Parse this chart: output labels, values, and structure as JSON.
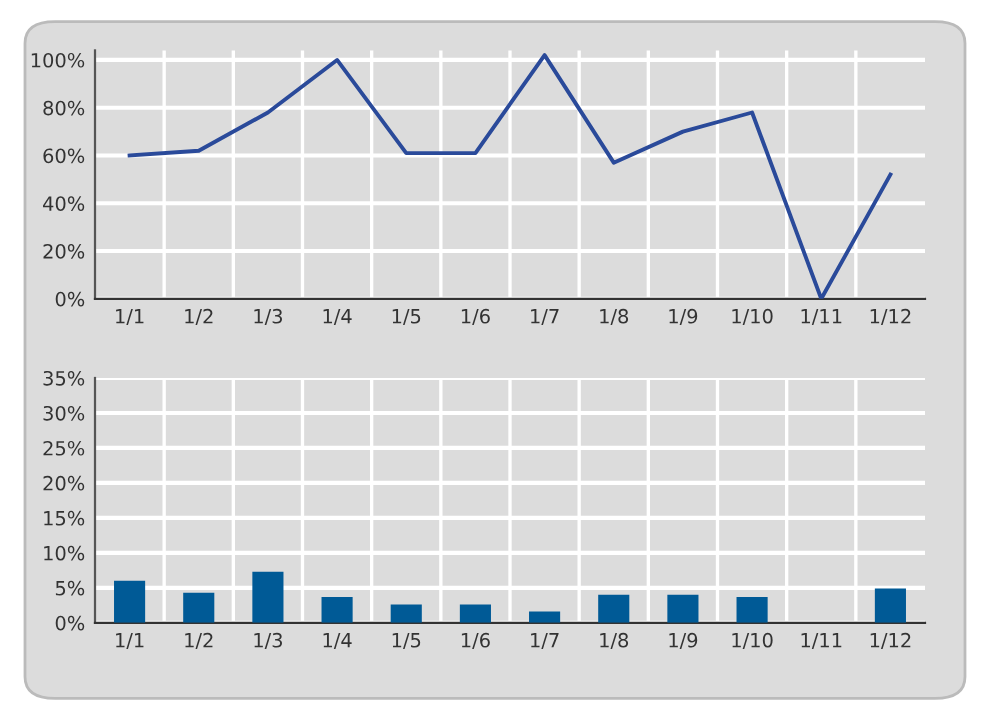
{
  "chart_data": [
    {
      "type": "line",
      "categories": [
        "1/1",
        "1/2",
        "1/3",
        "1/4",
        "1/5",
        "1/6",
        "1/7",
        "1/8",
        "1/9",
        "1/10",
        "1/11",
        "1/12"
      ],
      "series": [
        {
          "color": "#2a4a9a",
          "values": [
            60,
            62,
            78,
            100,
            61,
            61,
            102,
            57,
            70,
            78,
            0,
            52
          ]
        }
      ],
      "ylim": [
        0,
        104
      ],
      "yticks": [
        {
          "value": 0,
          "label": "0%"
        },
        {
          "value": 20,
          "label": "20%"
        },
        {
          "value": 40,
          "label": "40%"
        },
        {
          "value": 60,
          "label": "60%"
        },
        {
          "value": 80,
          "label": "80%"
        },
        {
          "value": 100,
          "label": "100%"
        }
      ],
      "grid": true,
      "marker": "none",
      "line_style": "solid"
    },
    {
      "type": "bar",
      "categories": [
        "1/1",
        "1/2",
        "1/3",
        "1/4",
        "1/5",
        "1/6",
        "1/7",
        "1/8",
        "1/9",
        "1/10",
        "1/11",
        "1/12"
      ],
      "series": [
        {
          "color": "#005a96",
          "values": [
            6.0,
            4.3,
            7.3,
            3.7,
            2.6,
            2.6,
            1.6,
            4.0,
            4.0,
            3.7,
            0,
            4.9
          ]
        }
      ],
      "ylim": [
        0,
        35
      ],
      "yticks": [
        {
          "value": 0,
          "label": "0%"
        },
        {
          "value": 5,
          "label": "5%"
        },
        {
          "value": 10,
          "label": "10%"
        },
        {
          "value": 15,
          "label": "15%"
        },
        {
          "value": 20,
          "label": "20%"
        },
        {
          "value": 25,
          "label": "25%"
        },
        {
          "value": 30,
          "label": "30%"
        },
        {
          "value": 35,
          "label": "35%"
        }
      ],
      "grid": true
    }
  ]
}
